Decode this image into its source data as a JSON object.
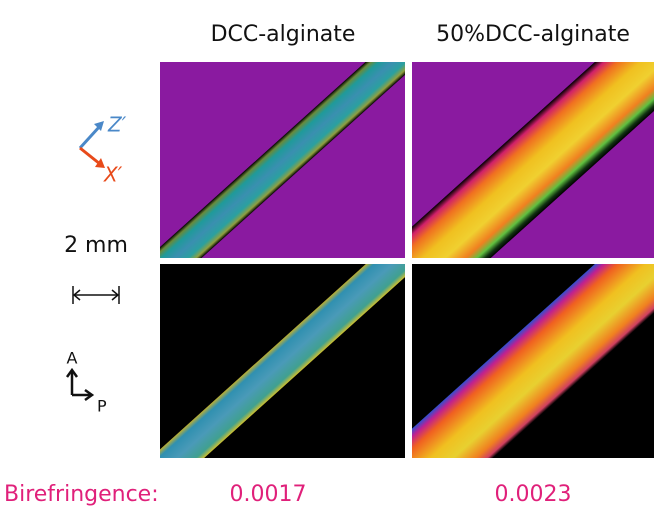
{
  "columns": [
    "DCC-alginate",
    "50%DCC-alginate"
  ],
  "axes": {
    "z_label": "Z′",
    "x_label": "X′"
  },
  "scale": {
    "label": "2 mm"
  },
  "polarizers": {
    "analyzer": "A",
    "polarizer": "P"
  },
  "birefringence": {
    "label": "Birefringence:",
    "values": [
      "0.0017",
      "0.0023"
    ]
  }
}
